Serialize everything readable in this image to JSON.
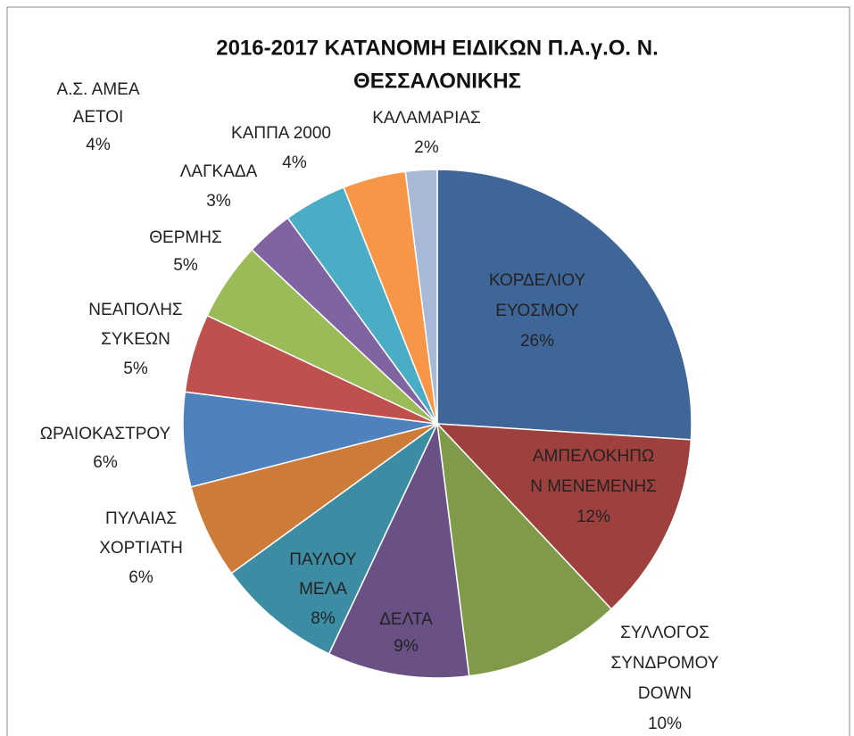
{
  "chart_data": {
    "type": "pie",
    "title": [
      "2016-2017 ΚΑΤΑΝΟΜΗ ΕΙΔΙΚΩΝ Π.Α.γ.Ο. Ν.",
      "ΘΕΣΣΑΛΟΝΙΚΗΣ"
    ],
    "categories": [
      [
        "ΚΟΡΔΕΛΙΟΥ",
        "ΕΥΟΣΜΟΥ"
      ],
      [
        "ΑΜΠΕΛΟΚΗΠΩ",
        "Ν ΜΕΝΕΜΕΝΗΣ"
      ],
      [
        "ΣΥΛΛΟΓΟΣ",
        "ΣΥΝΔΡΟΜΟΥ",
        "DOWN"
      ],
      [
        "ΔΕΛΤΑ"
      ],
      [
        "ΠΑΥΛΟΥ",
        "ΜΕΛΑ"
      ],
      [
        "ΠΥΛΑΙΑΣ",
        "ΧΟΡΤΙΑΤΗ"
      ],
      [
        "ΩΡΑΙΟΚΑΣΤΡΟΥ"
      ],
      [
        "ΝΕΑΠΟΛΗΣ",
        "ΣΥΚΕΩΝ"
      ],
      [
        "ΘΕΡΜΗΣ"
      ],
      [
        "ΛΑΓΚΑΔΑ"
      ],
      [
        "Α.Σ. ΑΜΕΑ",
        "ΑΕΤΟΙ"
      ],
      [
        "ΚΑΠΠΑ 2000"
      ],
      [
        "ΚΑΛΑΜΑΡΙΑΣ"
      ]
    ],
    "values": [
      26,
      12,
      10,
      9,
      8,
      6,
      6,
      5,
      5,
      3,
      4,
      4,
      2
    ],
    "value_labels": [
      "26%",
      "12%",
      "10%",
      "9%",
      "8%",
      "6%",
      "6%",
      "5%",
      "5%",
      "3%",
      "4%",
      "4%",
      "2%"
    ],
    "colors": [
      "#3F6699",
      "#9E413E",
      "#7F9A48",
      "#695185",
      "#3C8DA3",
      "#CC7B38",
      "#4F81BD",
      "#C0504D",
      "#9BBB59",
      "#8064A2",
      "#4BACC6",
      "#F79646",
      "#A7B9D7"
    ]
  }
}
